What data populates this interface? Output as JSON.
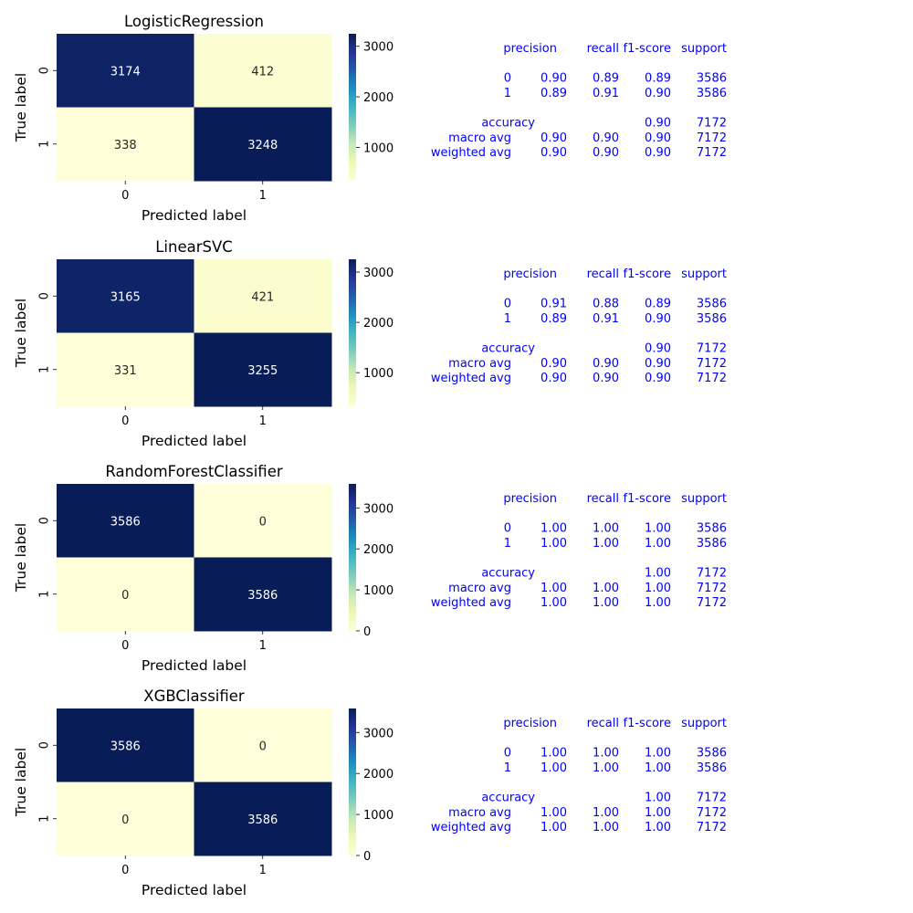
{
  "chart_data": [
    {
      "type": "heatmap",
      "title": "LogisticRegression",
      "xlabel": "Predicted label",
      "ylabel": "True label",
      "x_ticks": [
        "0",
        "1"
      ],
      "y_ticks": [
        "0",
        "1"
      ],
      "matrix": [
        [
          3174,
          412
        ],
        [
          338,
          3248
        ]
      ],
      "colormap": "YlGnBu",
      "colorbar": {
        "min": 338,
        "max": 3248,
        "ticks": [
          1000,
          2000,
          3000
        ]
      },
      "report": {
        "headers": [
          "precision",
          "recall",
          "f1-score",
          "support"
        ],
        "rows": [
          {
            "label": "0",
            "precision": "0.90",
            "recall": "0.89",
            "f1": "0.89",
            "support": "3586"
          },
          {
            "label": "1",
            "precision": "0.89",
            "recall": "0.91",
            "f1": "0.90",
            "support": "3586"
          }
        ],
        "accuracy": {
          "label": "accuracy",
          "f1": "0.90",
          "support": "7172"
        },
        "averages": [
          {
            "label": "macro avg",
            "precision": "0.90",
            "recall": "0.90",
            "f1": "0.90",
            "support": "7172"
          },
          {
            "label": "weighted avg",
            "precision": "0.90",
            "recall": "0.90",
            "f1": "0.90",
            "support": "7172"
          }
        ]
      }
    },
    {
      "type": "heatmap",
      "title": "LinearSVC",
      "xlabel": "Predicted label",
      "ylabel": "True label",
      "x_ticks": [
        "0",
        "1"
      ],
      "y_ticks": [
        "0",
        "1"
      ],
      "matrix": [
        [
          3165,
          421
        ],
        [
          331,
          3255
        ]
      ],
      "colormap": "YlGnBu",
      "colorbar": {
        "min": 331,
        "max": 3255,
        "ticks": [
          1000,
          2000,
          3000
        ]
      },
      "report": {
        "headers": [
          "precision",
          "recall",
          "f1-score",
          "support"
        ],
        "rows": [
          {
            "label": "0",
            "precision": "0.91",
            "recall": "0.88",
            "f1": "0.89",
            "support": "3586"
          },
          {
            "label": "1",
            "precision": "0.89",
            "recall": "0.91",
            "f1": "0.90",
            "support": "3586"
          }
        ],
        "accuracy": {
          "label": "accuracy",
          "f1": "0.90",
          "support": "7172"
        },
        "averages": [
          {
            "label": "macro avg",
            "precision": "0.90",
            "recall": "0.90",
            "f1": "0.90",
            "support": "7172"
          },
          {
            "label": "weighted avg",
            "precision": "0.90",
            "recall": "0.90",
            "f1": "0.90",
            "support": "7172"
          }
        ]
      }
    },
    {
      "type": "heatmap",
      "title": "RandomForestClassifier",
      "xlabel": "Predicted label",
      "ylabel": "True label",
      "x_ticks": [
        "0",
        "1"
      ],
      "y_ticks": [
        "0",
        "1"
      ],
      "matrix": [
        [
          3586,
          0
        ],
        [
          0,
          3586
        ]
      ],
      "colormap": "YlGnBu",
      "colorbar": {
        "min": 0,
        "max": 3586,
        "ticks": [
          0,
          1000,
          2000,
          3000
        ]
      },
      "report": {
        "headers": [
          "precision",
          "recall",
          "f1-score",
          "support"
        ],
        "rows": [
          {
            "label": "0",
            "precision": "1.00",
            "recall": "1.00",
            "f1": "1.00",
            "support": "3586"
          },
          {
            "label": "1",
            "precision": "1.00",
            "recall": "1.00",
            "f1": "1.00",
            "support": "3586"
          }
        ],
        "accuracy": {
          "label": "accuracy",
          "f1": "1.00",
          "support": "7172"
        },
        "averages": [
          {
            "label": "macro avg",
            "precision": "1.00",
            "recall": "1.00",
            "f1": "1.00",
            "support": "7172"
          },
          {
            "label": "weighted avg",
            "precision": "1.00",
            "recall": "1.00",
            "f1": "1.00",
            "support": "7172"
          }
        ]
      }
    },
    {
      "type": "heatmap",
      "title": "XGBClassifier",
      "xlabel": "Predicted label",
      "ylabel": "True label",
      "x_ticks": [
        "0",
        "1"
      ],
      "y_ticks": [
        "0",
        "1"
      ],
      "matrix": [
        [
          3586,
          0
        ],
        [
          0,
          3586
        ]
      ],
      "colormap": "YlGnBu",
      "colorbar": {
        "min": 0,
        "max": 3586,
        "ticks": [
          0,
          1000,
          2000,
          3000
        ]
      },
      "report": {
        "headers": [
          "precision",
          "recall",
          "f1-score",
          "support"
        ],
        "rows": [
          {
            "label": "0",
            "precision": "1.00",
            "recall": "1.00",
            "f1": "1.00",
            "support": "3586"
          },
          {
            "label": "1",
            "precision": "1.00",
            "recall": "1.00",
            "f1": "1.00",
            "support": "3586"
          }
        ],
        "accuracy": {
          "label": "accuracy",
          "f1": "1.00",
          "support": "7172"
        },
        "averages": [
          {
            "label": "macro avg",
            "precision": "1.00",
            "recall": "1.00",
            "f1": "1.00",
            "support": "7172"
          },
          {
            "label": "weighted avg",
            "precision": "1.00",
            "recall": "1.00",
            "f1": "1.00",
            "support": "7172"
          }
        ]
      }
    }
  ]
}
